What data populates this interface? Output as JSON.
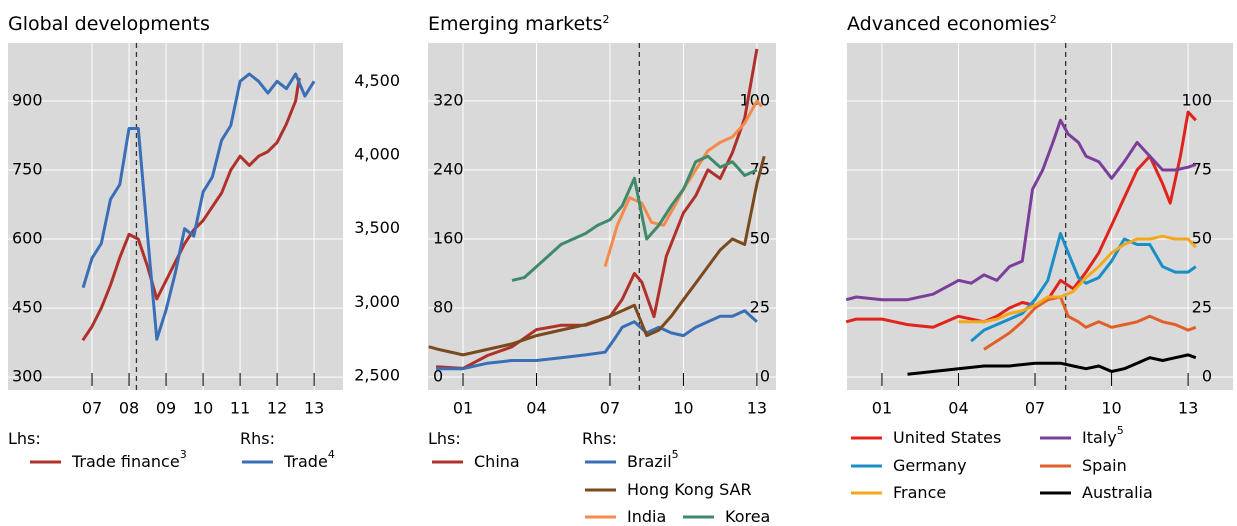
{
  "chart_data": [
    {
      "type": "line",
      "title": "Global developments",
      "xlim": [
        2004.73,
        2013.78
      ],
      "xticks": [
        {
          "value": 2007,
          "label": "07"
        },
        {
          "value": 2008,
          "label": "08"
        },
        {
          "value": 2009,
          "label": "09"
        },
        {
          "value": 2010,
          "label": "10"
        },
        {
          "value": 2011,
          "label": "11"
        },
        {
          "value": 2012,
          "label": "12"
        },
        {
          "value": 2013,
          "label": "13"
        }
      ],
      "ylim": [
        272,
        1026
      ],
      "yticks": [
        300,
        450,
        600,
        750,
        900
      ],
      "y2lim": [
        2406,
        4760
      ],
      "y2ticks": [
        {
          "value": 2500,
          "label": "2,500"
        },
        {
          "value": 3000,
          "label": "3,000"
        },
        {
          "value": 3500,
          "label": "3,500"
        },
        {
          "value": 4000,
          "label": "4,000"
        },
        {
          "value": 4500,
          "label": "4,500"
        }
      ],
      "event_x": 2008.2,
      "legend_groups": [
        "Lhs:",
        "Rhs:"
      ],
      "series": [
        {
          "name": "Trade finance",
          "note": "3",
          "color": "#b0302a",
          "axis": "y",
          "x": [
            2006.75,
            2007,
            2007.25,
            2007.5,
            2007.75,
            2008,
            2008.25,
            2008.5,
            2008.75,
            2009,
            2009.25,
            2009.5,
            2009.75,
            2010,
            2010.25,
            2010.5,
            2010.75,
            2011,
            2011.25,
            2011.5,
            2011.75,
            2012,
            2012.25,
            2012.5,
            2012.6
          ],
          "values": [
            380,
            410,
            450,
            500,
            560,
            610,
            600,
            540,
            470,
            510,
            550,
            590,
            620,
            640,
            670,
            700,
            750,
            780,
            760,
            780,
            790,
            810,
            850,
            900,
            950
          ]
        },
        {
          "name": "Trade",
          "note": "4",
          "color": "#3a6fb7",
          "axis": "y2",
          "x": [
            2006.76,
            2007,
            2007.25,
            2007.5,
            2007.75,
            2008,
            2008.25,
            2008.5,
            2008.75,
            2009,
            2009.25,
            2009.5,
            2009.75,
            2010,
            2010.25,
            2010.5,
            2010.75,
            2011,
            2011.25,
            2011.5,
            2011.75,
            2012,
            2012.25,
            2012.5,
            2012.75,
            2013
          ],
          "values": [
            3100,
            3300,
            3400,
            3700,
            3800,
            4180,
            4180,
            3450,
            2750,
            2950,
            3200,
            3500,
            3450,
            3750,
            3850,
            4100,
            4200,
            4500,
            4550,
            4500,
            4420,
            4500,
            4450,
            4550,
            4400,
            4500
          ]
        }
      ]
    },
    {
      "type": "line",
      "title": "Emerging markets",
      "title_note": "2",
      "xlim": [
        1999.57,
        2013.78
      ],
      "xticks": [
        {
          "value": 2001,
          "label": "01"
        },
        {
          "value": 2004,
          "label": "04"
        },
        {
          "value": 2007,
          "label": "07"
        },
        {
          "value": 2010,
          "label": "10"
        },
        {
          "value": 2013,
          "label": "13"
        }
      ],
      "ylim": [
        -15,
        387
      ],
      "yticks": [
        0,
        80,
        160,
        240,
        320
      ],
      "y2lim": [
        -4.7,
        121
      ],
      "y2ticks": [
        0,
        25,
        50,
        75,
        100
      ],
      "event_x": 2008.2,
      "legend_groups": [
        "Lhs:",
        "Rhs:"
      ],
      "series": [
        {
          "name": "China",
          "color": "#b0302a",
          "axis": "y",
          "x": [
            1999.9,
            2001,
            2002,
            2003,
            2004,
            2005,
            2006,
            2007,
            2007.5,
            2008,
            2008.3,
            2008.8,
            2009.3,
            2010,
            2010.5,
            2011,
            2011.5,
            2012,
            2012.5,
            2013
          ],
          "values": [
            12,
            10,
            25,
            35,
            55,
            60,
            60,
            70,
            90,
            120,
            110,
            70,
            140,
            190,
            210,
            240,
            230,
            260,
            300,
            380
          ]
        },
        {
          "name": "Brazil",
          "note": "5",
          "color": "#3a6fb7",
          "axis": "y2",
          "x": [
            1999.9,
            2001,
            2002,
            2003,
            2004,
            2005,
            2006,
            2006.8,
            2007.2,
            2007.5,
            2008,
            2008.5,
            2009,
            2009.5,
            2010,
            2010.5,
            2011,
            2011.5,
            2012,
            2012.5,
            2013
          ],
          "values": [
            3,
            3,
            5,
            6,
            6,
            7,
            8,
            9,
            14,
            18,
            20,
            16,
            18,
            16,
            15,
            18,
            20,
            22,
            22,
            24,
            20
          ]
        },
        {
          "name": "Hong Kong SAR",
          "color": "#7a4a1f",
          "axis": "y2",
          "x": [
            1999.6,
            2000,
            2001,
            2002,
            2003,
            2004,
            2005,
            2006,
            2007,
            2008,
            2008.5,
            2009,
            2009.5,
            2010,
            2010.5,
            2011,
            2011.5,
            2012,
            2012.5,
            2013,
            2013.3
          ],
          "values": [
            11,
            10,
            8,
            10,
            12,
            15,
            17,
            19,
            22,
            26,
            15,
            17,
            22,
            28,
            34,
            40,
            46,
            50,
            48,
            70,
            80
          ]
        },
        {
          "name": "India",
          "color": "#f58a4b",
          "axis": "y2",
          "x": [
            2006.8,
            2007.3,
            2007.8,
            2008.3,
            2008.7,
            2009.2,
            2009.7,
            2010,
            2010.5,
            2011,
            2011.5,
            2012,
            2012.5,
            2013,
            2013.2
          ],
          "values": [
            40,
            55,
            65,
            63,
            56,
            55,
            63,
            68,
            75,
            82,
            85,
            87,
            92,
            100,
            98
          ]
        },
        {
          "name": "Korea",
          "color": "#3f8a6b",
          "axis": "y2",
          "x": [
            2003,
            2003.5,
            2004,
            2004.5,
            2005,
            2005.5,
            2006,
            2006.5,
            2007,
            2007.5,
            2008,
            2008.5,
            2009,
            2009.5,
            2010,
            2010.5,
            2011,
            2011.5,
            2012,
            2012.5,
            2013
          ],
          "values": [
            35,
            36,
            40,
            44,
            48,
            50,
            52,
            55,
            57,
            62,
            72,
            50,
            55,
            62,
            68,
            78,
            80,
            76,
            78,
            73,
            75
          ]
        }
      ]
    },
    {
      "type": "line",
      "title": "Advanced economies",
      "title_note": "2",
      "xlim": [
        1999.63,
        2014.76
      ],
      "xticks": [
        {
          "value": 2001,
          "label": "01"
        },
        {
          "value": 2004,
          "label": "04"
        },
        {
          "value": 2007,
          "label": "07"
        },
        {
          "value": 2010,
          "label": "10"
        },
        {
          "value": 2013,
          "label": "13"
        }
      ],
      "y2lim": [
        -4.7,
        121
      ],
      "y2ticks": [
        0,
        25,
        50,
        75,
        100
      ],
      "event_x": 2008.2,
      "series": [
        {
          "name": "United States",
          "color": "#e0231b",
          "axis": "y2",
          "x": [
            1999.6,
            2000,
            2001,
            2002,
            2003,
            2004,
            2005,
            2005.5,
            2006,
            2006.5,
            2007,
            2007.5,
            2008,
            2008.5,
            2009,
            2009.5,
            2010,
            2010.5,
            2011,
            2011.5,
            2012,
            2012.3,
            2012.7,
            2013,
            2013.3
          ],
          "values": [
            20,
            21,
            21,
            19,
            18,
            22,
            20,
            22,
            25,
            27,
            26,
            28,
            35,
            32,
            38,
            45,
            55,
            65,
            75,
            80,
            70,
            63,
            80,
            96,
            93
          ]
        },
        {
          "name": "Italy",
          "note": "5",
          "color": "#7b3f9b",
          "axis": "y2",
          "x": [
            1999.6,
            2000,
            2001,
            2002,
            2003,
            2004,
            2004.5,
            2005,
            2005.5,
            2006,
            2006.5,
            2006.9,
            2007.3,
            2007.7,
            2008,
            2008.3,
            2008.7,
            2009,
            2009.5,
            2010,
            2010.5,
            2011,
            2011.5,
            2012,
            2012.5,
            2013,
            2013.3
          ],
          "values": [
            28,
            29,
            28,
            28,
            30,
            35,
            34,
            37,
            35,
            40,
            42,
            68,
            75,
            85,
            93,
            88,
            85,
            80,
            78,
            72,
            78,
            85,
            80,
            75,
            75,
            76,
            77
          ]
        },
        {
          "name": "Germany",
          "color": "#1a8fc7",
          "axis": "y2",
          "x": [
            2004.5,
            2005,
            2005.5,
            2006,
            2006.5,
            2007,
            2007.5,
            2008,
            2008.3,
            2008.7,
            2009,
            2009.5,
            2010,
            2010.5,
            2011,
            2011.5,
            2012,
            2012.5,
            2013,
            2013.3
          ],
          "values": [
            13,
            17,
            19,
            21,
            23,
            28,
            35,
            52,
            45,
            36,
            34,
            36,
            42,
            50,
            48,
            48,
            40,
            38,
            38,
            40
          ]
        },
        {
          "name": "Spain",
          "color": "#e0602a",
          "axis": "y2",
          "x": [
            2005,
            2005.5,
            2006,
            2006.5,
            2007,
            2007.5,
            2008,
            2008.3,
            2008.7,
            2009,
            2009.5,
            2010,
            2010.5,
            2011,
            2011.5,
            2012,
            2012.5,
            2013,
            2013.3
          ],
          "values": [
            10,
            13,
            16,
            20,
            25,
            28,
            29,
            22,
            20,
            18,
            20,
            18,
            19,
            20,
            22,
            20,
            19,
            17,
            18
          ]
        },
        {
          "name": "France",
          "color": "#f2a91e",
          "axis": "y2",
          "x": [
            2004,
            2005,
            2005.5,
            2006,
            2006.5,
            2007,
            2007.5,
            2008,
            2008.5,
            2009,
            2009.5,
            2010,
            2010.5,
            2011,
            2011.5,
            2012,
            2012.5,
            2013,
            2013.3
          ],
          "values": [
            20,
            20,
            21,
            23,
            24,
            26,
            29,
            29,
            31,
            36,
            40,
            45,
            48,
            50,
            50,
            51,
            50,
            50,
            47
          ]
        },
        {
          "name": "Australia",
          "color": "#000000",
          "axis": "y2",
          "x": [
            2002,
            2003,
            2004,
            2005,
            2006,
            2007,
            2008,
            2008.5,
            2009,
            2009.5,
            2010,
            2010.5,
            2011,
            2011.5,
            2012,
            2012.5,
            2013,
            2013.3
          ],
          "values": [
            1,
            2,
            3,
            4,
            4,
            5,
            5,
            4,
            3,
            4,
            2,
            3,
            5,
            7,
            6,
            7,
            8,
            7
          ]
        }
      ]
    }
  ]
}
